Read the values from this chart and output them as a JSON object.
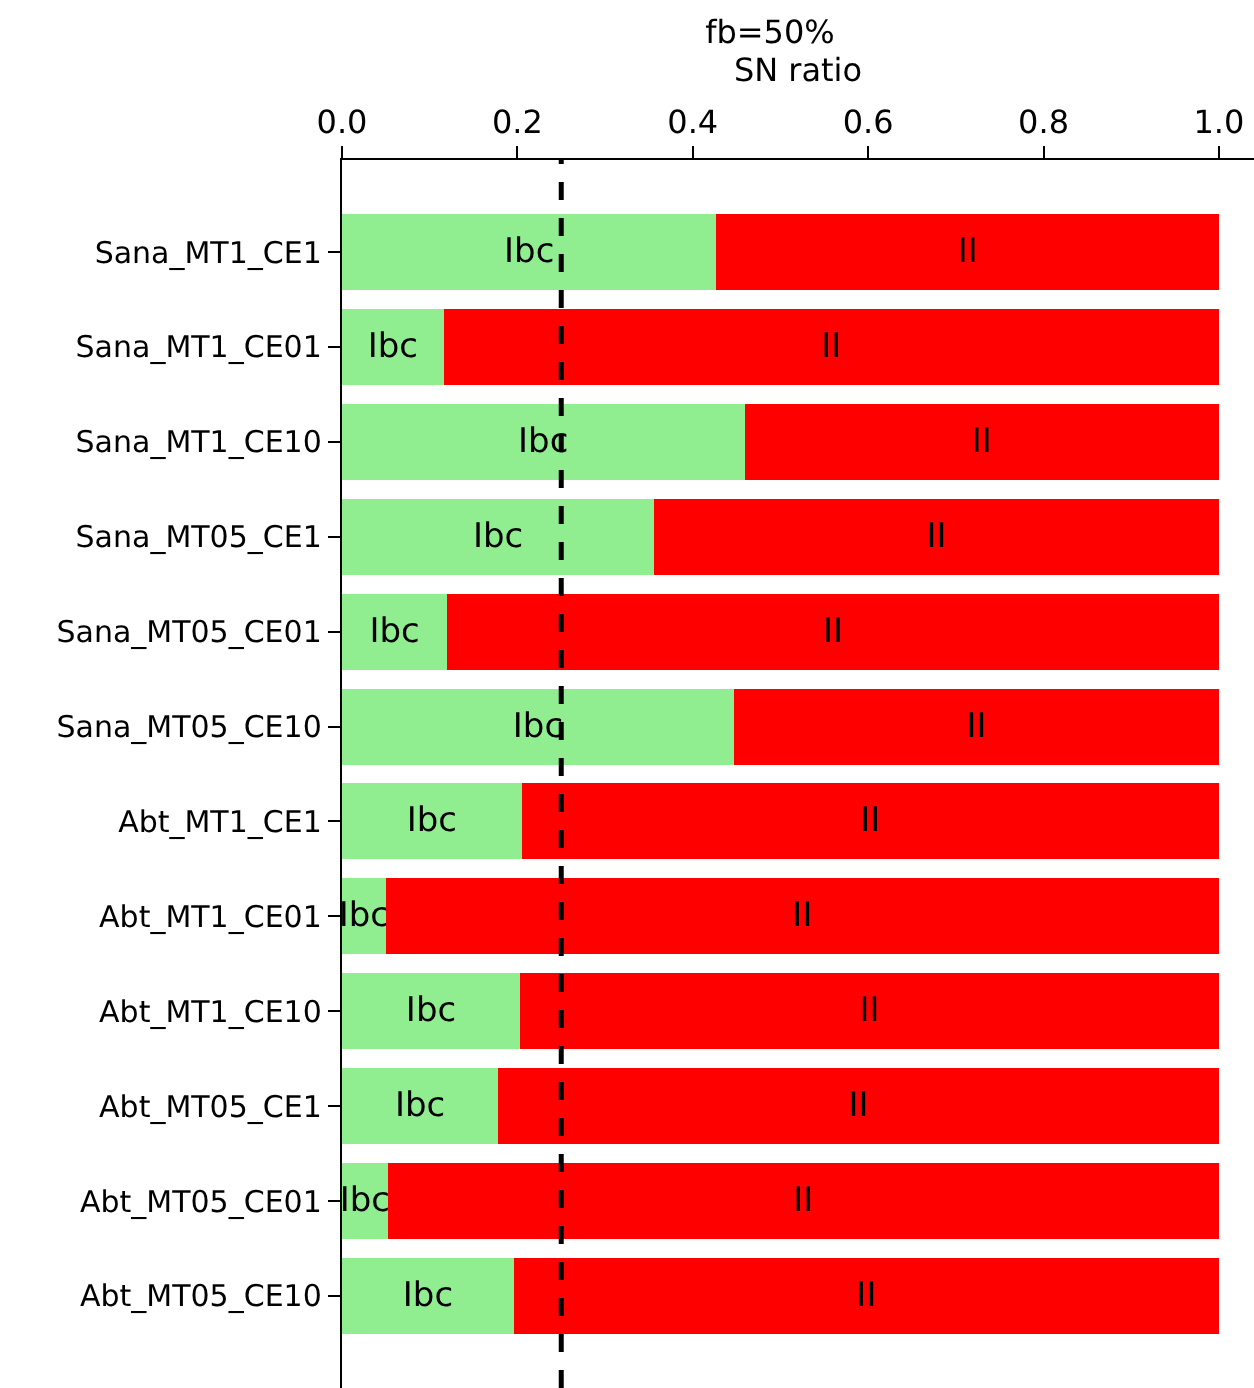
{
  "chart_data": {
    "type": "bar",
    "orientation": "horizontal",
    "stacked": true,
    "title": "fb=50%",
    "xlabel": "SN ratio",
    "categories": [
      "Sana_MT1_CE1",
      "Sana_MT1_CE01",
      "Sana_MT1_CE10",
      "Sana_MT05_CE1",
      "Sana_MT05_CE01",
      "Sana_MT05_CE10",
      "Abt_MT1_CE1",
      "Abt_MT1_CE01",
      "Abt_MT1_CE10",
      "Abt_MT05_CE1",
      "Abt_MT05_CE01",
      "Abt_MT05_CE10"
    ],
    "series": [
      {
        "name": "Ibc",
        "color": "#90ee90",
        "values": [
          0.427,
          0.116,
          0.459,
          0.356,
          0.12,
          0.447,
          0.205,
          0.05,
          0.203,
          0.178,
          0.052,
          0.196
        ]
      },
      {
        "name": "II",
        "color": "#ff0000",
        "values": [
          0.573,
          0.884,
          0.541,
          0.644,
          0.88,
          0.553,
          0.795,
          0.95,
          0.797,
          0.822,
          0.948,
          0.804
        ]
      }
    ],
    "xlim": [
      0,
      1.04
    ],
    "xticks": [
      {
        "value": 0,
        "label": "0.0"
      },
      0.2,
      0.4,
      0.6,
      0.8,
      {
        "value": 1,
        "label": "1.0"
      }
    ],
    "ref_lines": [
      {
        "axis": "x",
        "value": 0.25,
        "line_style": "dashed",
        "color": "#000000"
      }
    ],
    "legend": false
  }
}
